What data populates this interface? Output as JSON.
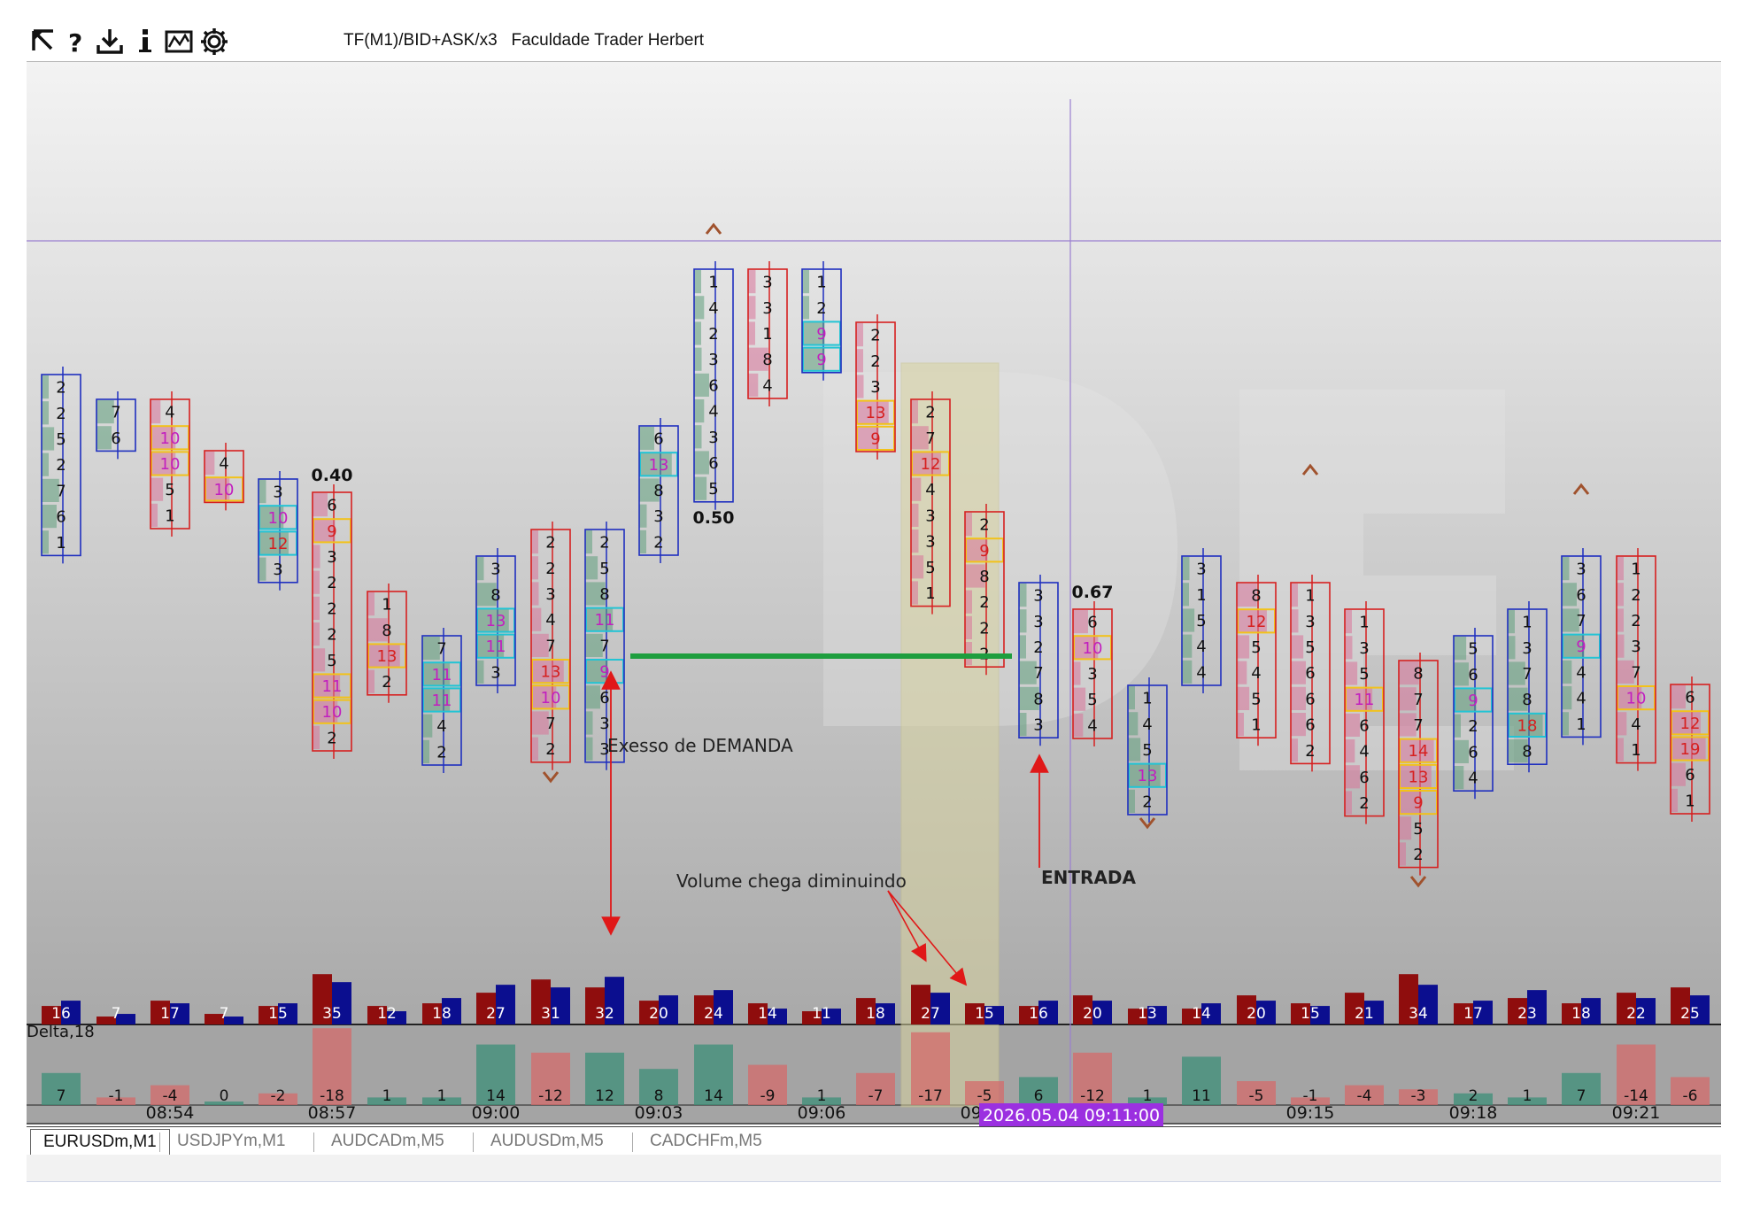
{
  "toolbar": {
    "icons": [
      "cursor-arrow-icon",
      "help-icon",
      "download-icon",
      "info-icon",
      "chart-image-icon",
      "gear-icon"
    ],
    "title": "TF(M1)/BID+ASK/x3   Faculdade Trader Herbert"
  },
  "tabs": [
    "EURUSDm,M1",
    "USDJPYm,M1",
    "AUDCADm,M5",
    "AUDUSDm,M5",
    "CADCHFm,M5"
  ],
  "active_tab": 0,
  "chart_data": {
    "type": "footprint",
    "delta_label": "Delta,18",
    "time_axis_labels": [
      "08:54",
      "08:57",
      "09:00",
      "09:03",
      "09:06",
      "09:09",
      "09:12",
      "09:15",
      "09:18",
      "09:21"
    ],
    "crosshair_time": "2026.05.04 09:11:00",
    "annotations": {
      "demand": "Exesso de DEMANDA",
      "volume": "Volume chega diminuindo",
      "entry": "ENTRADA",
      "ratios": [
        {
          "text": "0.40",
          "candle": 5
        },
        {
          "text": "0.50",
          "candle": 12
        },
        {
          "text": "0.67",
          "candle": 19
        }
      ]
    },
    "candles": [
      {
        "time": "08:53",
        "dir": "up",
        "volume": 16,
        "delta": 7,
        "cells": [
          "2",
          "2",
          "5",
          "2",
          "7",
          "6",
          "1"
        ]
      },
      {
        "time": "08:53",
        "dir": "up",
        "volume": 7,
        "delta": -1,
        "cells": [
          "7",
          "6"
        ]
      },
      {
        "time": "08:54",
        "dir": "down",
        "volume": 17,
        "delta": -4,
        "cells": [
          "4",
          "10",
          "10",
          "5",
          "1"
        ]
      },
      {
        "time": "08:55",
        "dir": "down",
        "volume": 7,
        "delta": 0,
        "cells": [
          "4",
          "10"
        ]
      },
      {
        "time": "08:56",
        "dir": "up",
        "volume": 15,
        "delta": -2,
        "cells": [
          "3",
          "10",
          "12",
          "3"
        ]
      },
      {
        "time": "08:57",
        "dir": "down",
        "volume": 35,
        "delta": -18,
        "cells": [
          "6",
          "9",
          "3",
          "2",
          "2",
          "2",
          "5",
          "11",
          "10",
          "2"
        ]
      },
      {
        "time": "08:58",
        "dir": "down",
        "volume": 12,
        "delta": 1,
        "cells": [
          "1",
          "8",
          "13",
          "2"
        ]
      },
      {
        "time": "08:59",
        "dir": "up",
        "volume": 18,
        "delta": 1,
        "cells": [
          "7",
          "11",
          "11",
          "4",
          "2"
        ]
      },
      {
        "time": "09:00",
        "dir": "up",
        "volume": 27,
        "delta": 14,
        "cells": [
          "3",
          "8",
          "13",
          "11",
          "3"
        ]
      },
      {
        "time": "09:01",
        "dir": "down",
        "volume": 31,
        "delta": -12,
        "cells": [
          "2",
          "2",
          "3",
          "4",
          "7",
          "13",
          "10",
          "7",
          "2"
        ]
      },
      {
        "time": "09:02",
        "dir": "up",
        "volume": 32,
        "delta": 12,
        "cells": [
          "2",
          "5",
          "8",
          "11",
          "7",
          "9",
          "6",
          "3",
          "3"
        ]
      },
      {
        "time": "09:03",
        "dir": "up",
        "volume": 20,
        "delta": 8,
        "cells": [
          "6",
          "13",
          "8",
          "3",
          "2"
        ]
      },
      {
        "time": "09:04",
        "dir": "up",
        "volume": 24,
        "delta": 14,
        "cells": [
          "1",
          "4",
          "2",
          "3",
          "6",
          "4",
          "3",
          "6",
          "5"
        ]
      },
      {
        "time": "09:05",
        "dir": "down",
        "volume": 14,
        "delta": -9,
        "cells": [
          "3",
          "3",
          "1",
          "8",
          "4"
        ]
      },
      {
        "time": "09:06",
        "dir": "up",
        "volume": 11,
        "delta": 1,
        "cells": [
          "1",
          "2",
          "9",
          "9"
        ]
      },
      {
        "time": "09:07",
        "dir": "down",
        "volume": 18,
        "delta": -7,
        "cells": [
          "2",
          "2",
          "3",
          "13",
          "9"
        ]
      },
      {
        "time": "09:08",
        "dir": "down",
        "volume": 27,
        "delta": -17,
        "cells": [
          "2",
          "7",
          "12",
          "4",
          "3",
          "3",
          "5",
          "1"
        ]
      },
      {
        "time": "09:09",
        "dir": "down",
        "volume": 15,
        "delta": -5,
        "cells": [
          "2",
          "9",
          "8",
          "2",
          "2",
          "2"
        ]
      },
      {
        "time": "09:10",
        "dir": "up",
        "volume": 16,
        "delta": 6,
        "cells": [
          "3",
          "3",
          "2",
          "7",
          "8",
          "3"
        ]
      },
      {
        "time": "09:11",
        "dir": "down",
        "volume": 20,
        "delta": -12,
        "cells": [
          "6",
          "10",
          "3",
          "5",
          "4"
        ]
      },
      {
        "time": "09:12",
        "dir": "up",
        "volume": 13,
        "delta": 1,
        "cells": [
          "1",
          "4",
          "5",
          "13",
          "2"
        ]
      },
      {
        "time": "09:13",
        "dir": "up",
        "volume": 14,
        "delta": 11,
        "cells": [
          "3",
          "1",
          "5",
          "4",
          "4"
        ]
      },
      {
        "time": "09:14",
        "dir": "down",
        "volume": 20,
        "delta": -5,
        "cells": [
          "8",
          "12",
          "5",
          "4",
          "5",
          "1"
        ]
      },
      {
        "time": "09:15",
        "dir": "down",
        "volume": 15,
        "delta": -1,
        "cells": [
          "1",
          "3",
          "5",
          "6",
          "6",
          "6",
          "2"
        ]
      },
      {
        "time": "09:16",
        "dir": "down",
        "volume": 21,
        "delta": -4,
        "cells": [
          "1",
          "3",
          "5",
          "11",
          "6",
          "4",
          "6",
          "2"
        ]
      },
      {
        "time": "09:17",
        "dir": "down",
        "volume": 34,
        "delta": -3,
        "cells": [
          "8",
          "7",
          "7",
          "14",
          "13",
          "9",
          "5",
          "2"
        ]
      },
      {
        "time": "09:18",
        "dir": "up",
        "volume": 17,
        "delta": 2,
        "cells": [
          "5",
          "6",
          "9",
          "2",
          "6",
          "4"
        ]
      },
      {
        "time": "09:19",
        "dir": "up",
        "volume": 23,
        "delta": 1,
        "cells": [
          "1",
          "3",
          "7",
          "8",
          "18",
          "8"
        ]
      },
      {
        "time": "09:20",
        "dir": "up",
        "volume": 18,
        "delta": 7,
        "cells": [
          "3",
          "6",
          "7",
          "9",
          "4",
          "4",
          "1"
        ]
      },
      {
        "time": "09:21",
        "dir": "down",
        "volume": 22,
        "delta": -14,
        "cells": [
          "1",
          "2",
          "2",
          "3",
          "7",
          "10",
          "4",
          "1"
        ]
      },
      {
        "time": "09:22",
        "dir": "down",
        "volume": 25,
        "delta": -6,
        "cells": [
          "6",
          "12",
          "19",
          "6",
          "1"
        ]
      }
    ]
  }
}
